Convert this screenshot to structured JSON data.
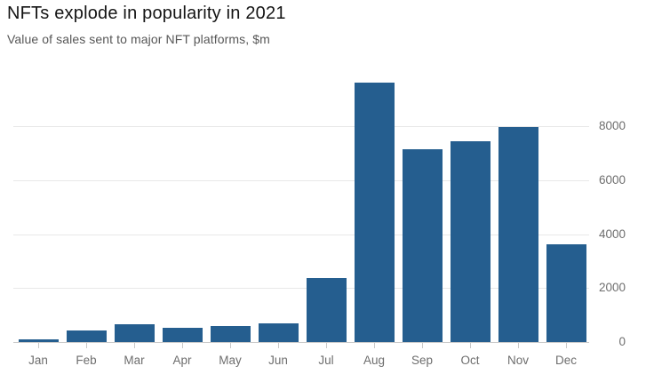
{
  "chart": {
    "title": "NFTs explode in popularity in 2021",
    "subtitle": "Value of sales sent to major NFT platforms, $m"
  },
  "chart_data": {
    "type": "bar",
    "title": "NFTs explode in popularity in 2021",
    "subtitle": "Value of sales sent to major NFT platforms, $m",
    "categories": [
      "Jan",
      "Feb",
      "Mar",
      "Apr",
      "May",
      "Jun",
      "Jul",
      "Aug",
      "Sep",
      "Oct",
      "Nov",
      "Dec"
    ],
    "values": [
      100,
      430,
      660,
      530,
      590,
      690,
      2370,
      9600,
      7140,
      7440,
      7980,
      3620
    ],
    "xlabel": "",
    "ylabel": "",
    "y_ticks": [
      0,
      2000,
      4000,
      6000,
      8000
    ],
    "ylim": [
      0,
      9800
    ],
    "grid": true,
    "legend": "none",
    "axis_side": "right",
    "colors": {
      "bar": "#255e8f",
      "title": "#141414",
      "subtitle": "#575757",
      "axis_label": "#6e6e6e",
      "gridline": "#e8e8e8",
      "baseline": "#c9c9c9",
      "background": "#ffffff"
    }
  }
}
